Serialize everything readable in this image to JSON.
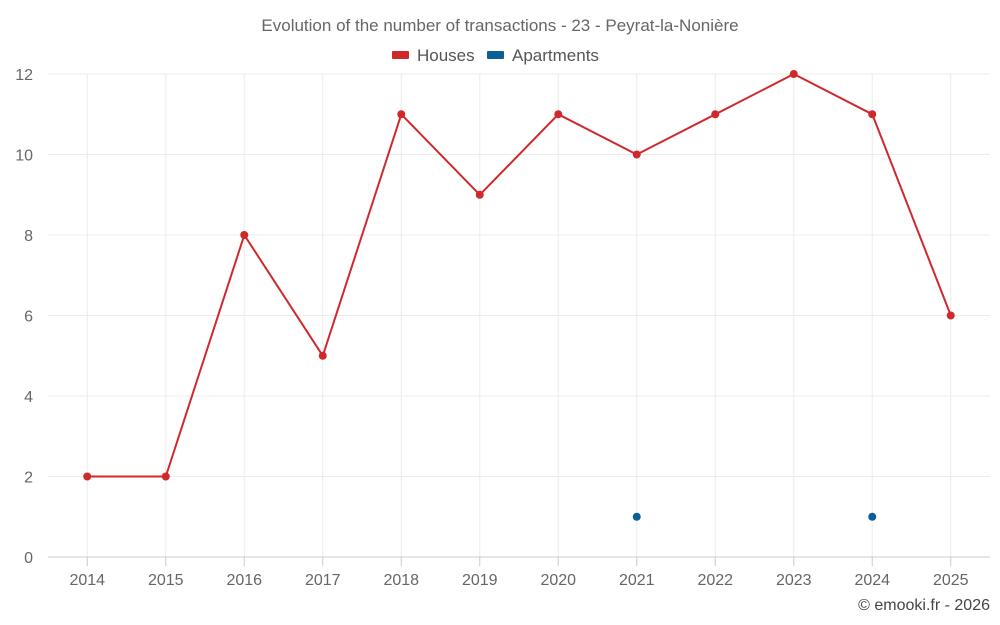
{
  "chart_data": {
    "type": "line",
    "title": "Evolution of the number of transactions - 23 - Peyrat-la-Nonière",
    "categories": [
      "2014",
      "2015",
      "2016",
      "2017",
      "2018",
      "2019",
      "2020",
      "2021",
      "2022",
      "2023",
      "2024",
      "2025"
    ],
    "series": [
      {
        "name": "Houses",
        "color": "#d0292b",
        "values": [
          2,
          2,
          8,
          5,
          11,
          9,
          11,
          10,
          11,
          12,
          11,
          6
        ]
      },
      {
        "name": "Apartments",
        "color": "#0b5f99",
        "values": [
          null,
          null,
          null,
          null,
          null,
          null,
          null,
          1,
          null,
          null,
          1,
          null
        ]
      }
    ],
    "yticks": [
      0,
      2,
      4,
      6,
      8,
      10,
      12
    ],
    "ylim": [
      0,
      12
    ],
    "grid": true,
    "legend_position": "top-center",
    "credit": "© emooki.fr - 2026"
  }
}
